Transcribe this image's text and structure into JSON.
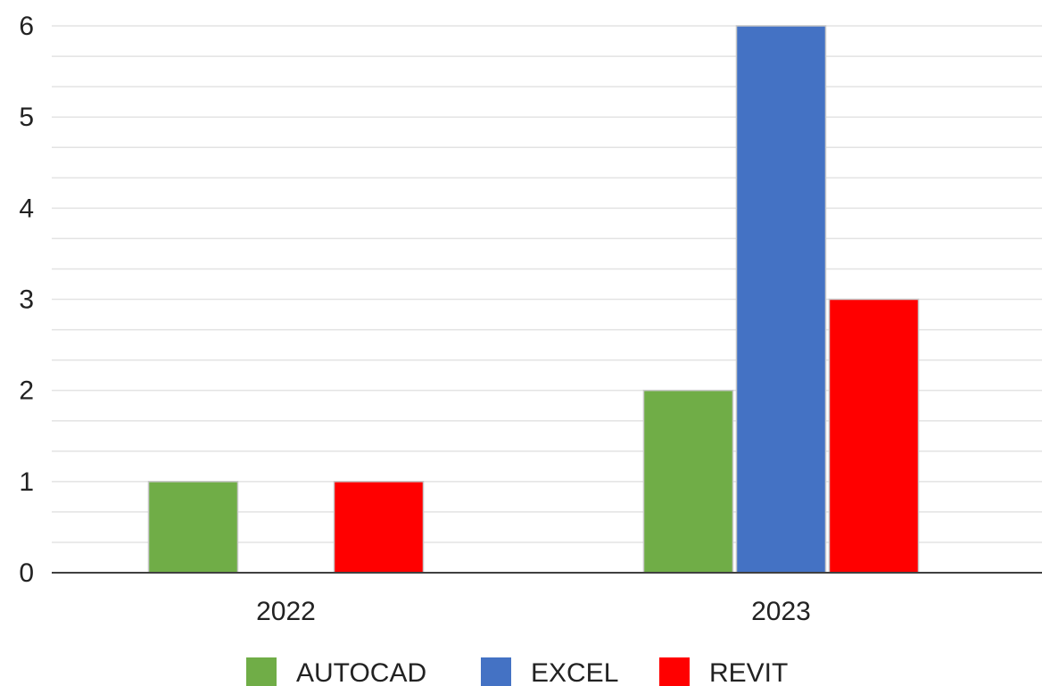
{
  "chart_data": {
    "type": "bar",
    "categories": [
      "2022",
      "2023"
    ],
    "series": [
      {
        "name": "AUTOCAD",
        "color": "#70ad47",
        "values": [
          1,
          2
        ]
      },
      {
        "name": "EXCEL",
        "color": "#4472c4",
        "values": [
          0,
          6
        ]
      },
      {
        "name": "REVIT",
        "color": "#ff0000",
        "values": [
          1,
          3
        ]
      }
    ],
    "ylim": [
      0,
      6
    ],
    "yticks": [
      0,
      1,
      2,
      3,
      4,
      5,
      6
    ],
    "minor_grid_step": 0.3333,
    "grid": true,
    "legend": "bottom",
    "title": "",
    "xlabel": "",
    "ylabel": ""
  }
}
